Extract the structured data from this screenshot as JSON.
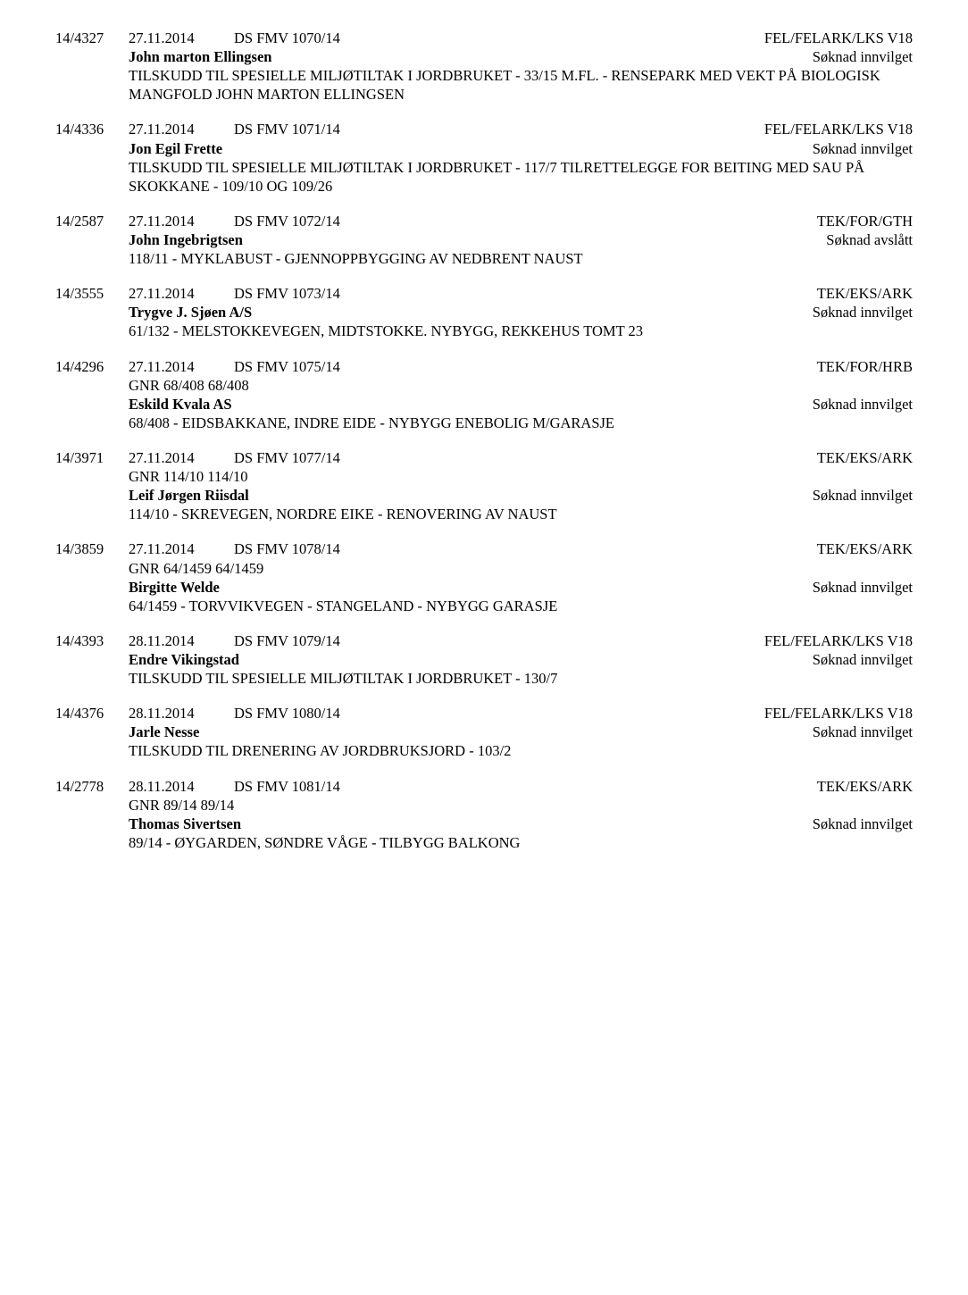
{
  "entries": [
    {
      "case": "14/4327",
      "date": "27.11.2014",
      "doc": "DS FMV 1070/14",
      "dept": "FEL/FELARK/LKS V18",
      "gnr": "",
      "applicant": "John marton Ellingsen",
      "status": "Søknad innvilget",
      "desc": "TILSKUDD TIL SPESIELLE MILJØTILTAK I JORDBRUKET - 33/15 M.FL. - RENSEPARK MED VEKT PÅ BIOLOGISK MANGFOLD JOHN MARTON ELLINGSEN"
    },
    {
      "case": "14/4336",
      "date": "27.11.2014",
      "doc": "DS FMV 1071/14",
      "dept": "FEL/FELARK/LKS V18",
      "gnr": "",
      "applicant": "Jon Egil Frette",
      "status": "Søknad innvilget",
      "desc": "TILSKUDD TIL SPESIELLE MILJØTILTAK I JORDBRUKET - 117/7 TILRETTELEGGE FOR BEITING MED SAU PÅ SKOKKANE - 109/10 OG 109/26"
    },
    {
      "case": "14/2587",
      "date": "27.11.2014",
      "doc": "DS FMV 1072/14",
      "dept": "TEK/FOR/GTH",
      "gnr": "",
      "applicant": "John Ingebrigtsen",
      "status": "Søknad avslått",
      "desc": "118/11 - MYKLABUST - GJENNOPPBYGGING AV NEDBRENT NAUST"
    },
    {
      "case": "14/3555",
      "date": "27.11.2014",
      "doc": "DS FMV 1073/14",
      "dept": "TEK/EKS/ARK",
      "gnr": "",
      "applicant": "Trygve J. Sjøen A/S",
      "status": "Søknad innvilget",
      "desc": "61/132 - MELSTOKKEVEGEN, MIDTSTOKKE. NYBYGG, REKKEHUS TOMT 23"
    },
    {
      "case": "14/4296",
      "date": "27.11.2014",
      "doc": "DS FMV 1075/14",
      "dept": "TEK/FOR/HRB",
      "gnr": "GNR 68/408 68/408",
      "applicant": "Eskild Kvala AS",
      "status": "Søknad innvilget",
      "desc": "68/408 - EIDSBAKKANE, INDRE EIDE - NYBYGG ENEBOLIG M/GARASJE"
    },
    {
      "case": "14/3971",
      "date": "27.11.2014",
      "doc": "DS FMV 1077/14",
      "dept": "TEK/EKS/ARK",
      "gnr": "GNR 114/10 114/10",
      "applicant": "Leif Jørgen Riisdal",
      "status": "Søknad innvilget",
      "desc": "114/10 - SKREVEGEN, NORDRE EIKE - RENOVERING AV NAUST"
    },
    {
      "case": "14/3859",
      "date": "27.11.2014",
      "doc": "DS FMV 1078/14",
      "dept": "TEK/EKS/ARK",
      "gnr": "GNR 64/1459 64/1459",
      "applicant": "Birgitte Welde",
      "status": "Søknad innvilget",
      "desc": "64/1459 - TORVVIKVEGEN -  STANGELAND -  NYBYGG GARASJE"
    },
    {
      "case": "14/4393",
      "date": "28.11.2014",
      "doc": "DS FMV 1079/14",
      "dept": "FEL/FELARK/LKS V18",
      "gnr": "",
      "applicant": "Endre Vikingstad",
      "status": "Søknad innvilget",
      "desc": "TILSKUDD TIL SPESIELLE MILJØTILTAK I JORDBRUKET - 130/7"
    },
    {
      "case": "14/4376",
      "date": "28.11.2014",
      "doc": "DS FMV 1080/14",
      "dept": "FEL/FELARK/LKS V18",
      "gnr": "",
      "applicant": "Jarle Nesse",
      "status": "Søknad innvilget",
      "desc": "TILSKUDD TIL DRENERING AV JORDBRUKSJORD - 103/2"
    },
    {
      "case": "14/2778",
      "date": "28.11.2014",
      "doc": "DS FMV 1081/14",
      "dept": "TEK/EKS/ARK",
      "gnr": "GNR 89/14 89/14",
      "applicant": "Thomas Sivertsen",
      "status": "Søknad innvilget",
      "desc": "89/14 - ØYGARDEN, SØNDRE VÅGE - TILBYGG BALKONG"
    }
  ]
}
